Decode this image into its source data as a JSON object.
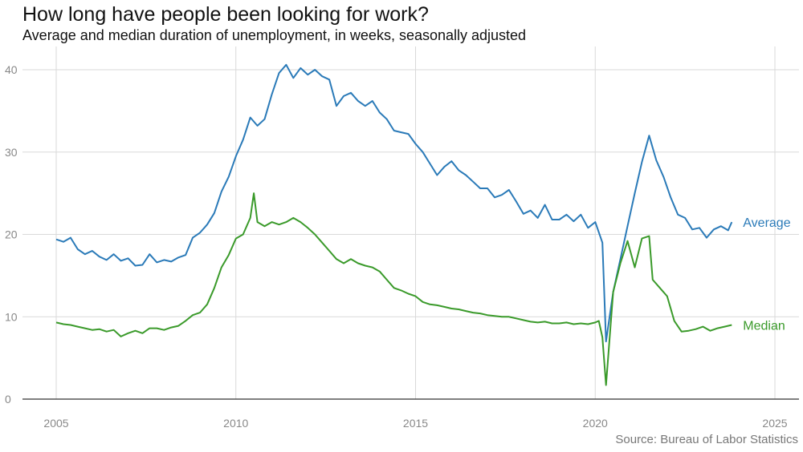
{
  "title": "How long have people been looking for work?",
  "subtitle": "Average and median duration of unemployment, in weeks, seasonally adjusted",
  "source": "Source: Bureau of Labor Statistics",
  "chart_data": {
    "type": "line",
    "title": "How long have people been looking for work?",
    "subtitle": "Average and median duration of unemployment, in weeks, seasonally adjusted",
    "xlabel": "",
    "ylabel": "",
    "xlim": [
      2004.6,
      2026.2
    ],
    "ylim": [
      0,
      42
    ],
    "x_ticks": [
      2005,
      2010,
      2015,
      2020,
      2025
    ],
    "y_ticks": [
      0,
      10,
      20,
      30,
      40
    ],
    "grid": true,
    "legend": "direct labels at right end of lines",
    "series": [
      {
        "name": "Average",
        "color": "#2a7ab8",
        "points": [
          [
            2005.0,
            19.4
          ],
          [
            2005.2,
            19.1
          ],
          [
            2005.4,
            19.6
          ],
          [
            2005.6,
            18.2
          ],
          [
            2005.8,
            17.6
          ],
          [
            2006.0,
            18.0
          ],
          [
            2006.2,
            17.3
          ],
          [
            2006.4,
            16.9
          ],
          [
            2006.6,
            17.6
          ],
          [
            2006.8,
            16.8
          ],
          [
            2007.0,
            17.1
          ],
          [
            2007.2,
            16.2
          ],
          [
            2007.4,
            16.3
          ],
          [
            2007.6,
            17.6
          ],
          [
            2007.8,
            16.6
          ],
          [
            2008.0,
            16.9
          ],
          [
            2008.2,
            16.7
          ],
          [
            2008.4,
            17.2
          ],
          [
            2008.6,
            17.5
          ],
          [
            2008.8,
            19.6
          ],
          [
            2009.0,
            20.2
          ],
          [
            2009.2,
            21.2
          ],
          [
            2009.4,
            22.6
          ],
          [
            2009.6,
            25.2
          ],
          [
            2009.8,
            27.0
          ],
          [
            2010.0,
            29.5
          ],
          [
            2010.2,
            31.5
          ],
          [
            2010.4,
            34.2
          ],
          [
            2010.6,
            33.2
          ],
          [
            2010.8,
            34.0
          ],
          [
            2011.0,
            37.0
          ],
          [
            2011.2,
            39.6
          ],
          [
            2011.4,
            40.6
          ],
          [
            2011.6,
            39.0
          ],
          [
            2011.8,
            40.2
          ],
          [
            2012.0,
            39.4
          ],
          [
            2012.2,
            40.0
          ],
          [
            2012.4,
            39.2
          ],
          [
            2012.6,
            38.8
          ],
          [
            2012.8,
            35.6
          ],
          [
            2013.0,
            36.8
          ],
          [
            2013.2,
            37.2
          ],
          [
            2013.4,
            36.2
          ],
          [
            2013.6,
            35.6
          ],
          [
            2013.8,
            36.2
          ],
          [
            2014.0,
            34.8
          ],
          [
            2014.2,
            34.0
          ],
          [
            2014.4,
            32.6
          ],
          [
            2014.6,
            32.4
          ],
          [
            2014.8,
            32.2
          ],
          [
            2015.0,
            31.0
          ],
          [
            2015.2,
            30.0
          ],
          [
            2015.4,
            28.6
          ],
          [
            2015.6,
            27.2
          ],
          [
            2015.8,
            28.2
          ],
          [
            2016.0,
            28.9
          ],
          [
            2016.2,
            27.8
          ],
          [
            2016.4,
            27.2
          ],
          [
            2016.6,
            26.4
          ],
          [
            2016.8,
            25.6
          ],
          [
            2017.0,
            25.6
          ],
          [
            2017.2,
            24.5
          ],
          [
            2017.4,
            24.8
          ],
          [
            2017.6,
            25.4
          ],
          [
            2017.8,
            24.0
          ],
          [
            2018.0,
            22.5
          ],
          [
            2018.2,
            22.9
          ],
          [
            2018.4,
            22.0
          ],
          [
            2018.6,
            23.6
          ],
          [
            2018.8,
            21.8
          ],
          [
            2019.0,
            21.8
          ],
          [
            2019.2,
            22.4
          ],
          [
            2019.4,
            21.6
          ],
          [
            2019.6,
            22.4
          ],
          [
            2019.8,
            20.8
          ],
          [
            2020.0,
            21.5
          ],
          [
            2020.2,
            19.0
          ],
          [
            2020.3,
            7.0
          ],
          [
            2020.5,
            13.0
          ],
          [
            2020.7,
            17.0
          ],
          [
            2020.9,
            21.0
          ],
          [
            2021.1,
            25.0
          ],
          [
            2021.3,
            28.8
          ],
          [
            2021.5,
            32.0
          ],
          [
            2021.7,
            29.0
          ],
          [
            2021.9,
            27.0
          ],
          [
            2022.1,
            24.5
          ],
          [
            2022.3,
            22.4
          ],
          [
            2022.5,
            22.0
          ],
          [
            2022.7,
            20.6
          ],
          [
            2022.9,
            20.8
          ],
          [
            2023.1,
            19.6
          ],
          [
            2023.3,
            20.6
          ],
          [
            2023.5,
            21.0
          ],
          [
            2023.7,
            20.5
          ],
          [
            2023.8,
            21.5
          ]
        ]
      },
      {
        "name": "Median",
        "color": "#3a9a2a",
        "points": [
          [
            2005.0,
            9.3
          ],
          [
            2005.2,
            9.1
          ],
          [
            2005.4,
            9.0
          ],
          [
            2005.6,
            8.8
          ],
          [
            2005.8,
            8.6
          ],
          [
            2006.0,
            8.4
          ],
          [
            2006.2,
            8.5
          ],
          [
            2006.4,
            8.2
          ],
          [
            2006.6,
            8.4
          ],
          [
            2006.8,
            7.6
          ],
          [
            2007.0,
            8.0
          ],
          [
            2007.2,
            8.3
          ],
          [
            2007.4,
            8.0
          ],
          [
            2007.6,
            8.6
          ],
          [
            2007.8,
            8.6
          ],
          [
            2008.0,
            8.4
          ],
          [
            2008.2,
            8.7
          ],
          [
            2008.4,
            8.9
          ],
          [
            2008.6,
            9.5
          ],
          [
            2008.8,
            10.2
          ],
          [
            2009.0,
            10.5
          ],
          [
            2009.2,
            11.5
          ],
          [
            2009.4,
            13.5
          ],
          [
            2009.6,
            16.0
          ],
          [
            2009.8,
            17.5
          ],
          [
            2010.0,
            19.5
          ],
          [
            2010.2,
            20.0
          ],
          [
            2010.4,
            22.0
          ],
          [
            2010.5,
            25.0
          ],
          [
            2010.6,
            21.5
          ],
          [
            2010.8,
            21.0
          ],
          [
            2011.0,
            21.5
          ],
          [
            2011.2,
            21.2
          ],
          [
            2011.4,
            21.5
          ],
          [
            2011.6,
            22.0
          ],
          [
            2011.8,
            21.5
          ],
          [
            2012.0,
            20.8
          ],
          [
            2012.2,
            20.0
          ],
          [
            2012.4,
            19.0
          ],
          [
            2012.6,
            18.0
          ],
          [
            2012.8,
            17.0
          ],
          [
            2013.0,
            16.5
          ],
          [
            2013.2,
            17.0
          ],
          [
            2013.4,
            16.5
          ],
          [
            2013.6,
            16.2
          ],
          [
            2013.8,
            16.0
          ],
          [
            2014.0,
            15.5
          ],
          [
            2014.2,
            14.5
          ],
          [
            2014.4,
            13.5
          ],
          [
            2014.6,
            13.2
          ],
          [
            2014.8,
            12.8
          ],
          [
            2015.0,
            12.5
          ],
          [
            2015.2,
            11.8
          ],
          [
            2015.4,
            11.5
          ],
          [
            2015.6,
            11.4
          ],
          [
            2015.8,
            11.2
          ],
          [
            2016.0,
            11.0
          ],
          [
            2016.2,
            10.9
          ],
          [
            2016.4,
            10.7
          ],
          [
            2016.6,
            10.5
          ],
          [
            2016.8,
            10.4
          ],
          [
            2017.0,
            10.2
          ],
          [
            2017.2,
            10.1
          ],
          [
            2017.4,
            10.0
          ],
          [
            2017.6,
            10.0
          ],
          [
            2017.8,
            9.8
          ],
          [
            2018.0,
            9.6
          ],
          [
            2018.2,
            9.4
          ],
          [
            2018.4,
            9.3
          ],
          [
            2018.6,
            9.4
          ],
          [
            2018.8,
            9.2
          ],
          [
            2019.0,
            9.2
          ],
          [
            2019.2,
            9.3
          ],
          [
            2019.4,
            9.1
          ],
          [
            2019.6,
            9.2
          ],
          [
            2019.8,
            9.1
          ],
          [
            2020.0,
            9.3
          ],
          [
            2020.1,
            9.5
          ],
          [
            2020.2,
            7.5
          ],
          [
            2020.3,
            1.7
          ],
          [
            2020.5,
            13.0
          ],
          [
            2020.7,
            16.5
          ],
          [
            2020.9,
            19.2
          ],
          [
            2021.1,
            16.0
          ],
          [
            2021.3,
            19.5
          ],
          [
            2021.5,
            19.8
          ],
          [
            2021.6,
            14.5
          ],
          [
            2021.8,
            13.5
          ],
          [
            2022.0,
            12.5
          ],
          [
            2022.2,
            9.5
          ],
          [
            2022.4,
            8.2
          ],
          [
            2022.6,
            8.3
          ],
          [
            2022.8,
            8.5
          ],
          [
            2023.0,
            8.8
          ],
          [
            2023.2,
            8.3
          ],
          [
            2023.4,
            8.6
          ],
          [
            2023.6,
            8.8
          ],
          [
            2023.8,
            9.0
          ]
        ]
      }
    ],
    "colors": {
      "average": "#2a7ab8",
      "median": "#3a9a2a",
      "grid": "#d9d9d9",
      "axis": "#333333",
      "tick_text": "#888888"
    }
  }
}
